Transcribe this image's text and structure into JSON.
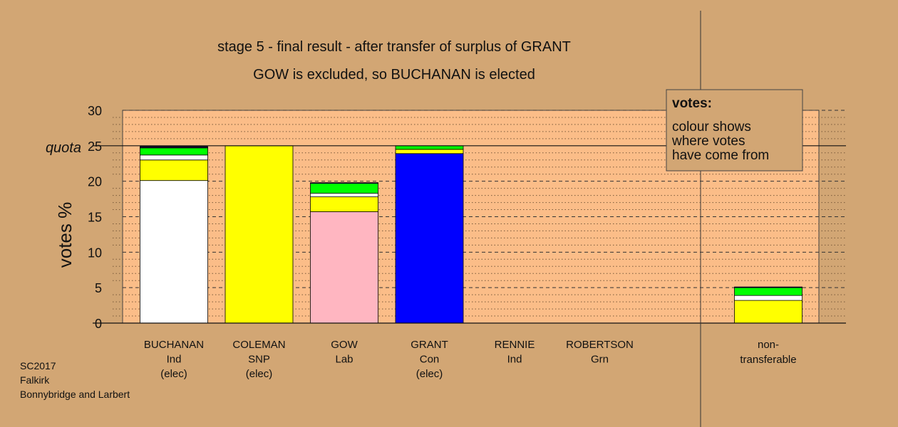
{
  "chart_data": {
    "type": "bar",
    "stacked": true,
    "title": "stage 5 - final result - after transfer of surplus of GRANT",
    "subtitle": "GOW is excluded, so BUCHANAN is elected",
    "ylabel": "votes %",
    "ylim": [
      0,
      30
    ],
    "yticks": [
      "0",
      "5",
      "10",
      "15",
      "20",
      "25",
      "30"
    ],
    "quota": 25,
    "quota_label": "quota",
    "grid": true,
    "legend": {
      "position": "top-right",
      "heading": "votes:",
      "lines": [
        "colour shows",
        "where votes",
        "have come from"
      ]
    },
    "categories": [
      {
        "name": "BUCHANAN",
        "party": "Ind",
        "status": "(elec)"
      },
      {
        "name": "COLEMAN",
        "party": "SNP",
        "status": "(elec)"
      },
      {
        "name": "GOW",
        "party": "Lab",
        "status": ""
      },
      {
        "name": "GRANT",
        "party": "Con",
        "status": "(elec)"
      },
      {
        "name": "RENNIE",
        "party": "Ind",
        "status": ""
      },
      {
        "name": "ROBERTSON",
        "party": "Grn",
        "status": ""
      }
    ],
    "extra_category": {
      "line1": "non-",
      "line2": "transferable"
    },
    "bars": [
      {
        "segments": [
          {
            "color": "#ffffff",
            "value": 20.1
          },
          {
            "color": "#ffff00",
            "value": 2.9
          },
          {
            "color": "#ffffff",
            "value": 0.7
          },
          {
            "color": "#00ff00",
            "value": 1.0
          },
          {
            "color": "#ffb6c1",
            "value": 0.1
          },
          {
            "color": "#0000ff",
            "value": 0.1
          }
        ]
      },
      {
        "segments": [
          {
            "color": "#ffff00",
            "value": 25.0
          }
        ]
      },
      {
        "segments": [
          {
            "color": "#ffb6c1",
            "value": 15.7
          },
          {
            "color": "#ffff00",
            "value": 2.1
          },
          {
            "color": "#ffffff",
            "value": 0.5
          },
          {
            "color": "#00ff00",
            "value": 1.4
          },
          {
            "color": "#0000ff",
            "value": 0.1
          }
        ]
      },
      {
        "segments": [
          {
            "color": "#0000ff",
            "value": 23.9
          },
          {
            "color": "#ffff00",
            "value": 0.6
          },
          {
            "color": "#00ff00",
            "value": 0.5
          }
        ]
      },
      {
        "segments": []
      },
      {
        "segments": []
      }
    ],
    "nontransferable": {
      "segments": [
        {
          "color": "#ffff00",
          "value": 3.2
        },
        {
          "color": "#ffffff",
          "value": 0.7
        },
        {
          "color": "#00ff00",
          "value": 1.1
        },
        {
          "color": "#0000ff",
          "value": 0.1
        }
      ]
    }
  },
  "footer": [
    "SC2017",
    "Falkirk",
    "Bonnybridge and Larbert"
  ]
}
